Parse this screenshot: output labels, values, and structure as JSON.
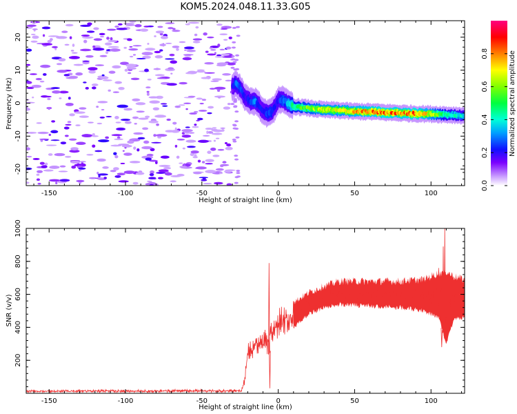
{
  "title": "KOM5.2024.048.11.33.G05",
  "chart_data": [
    {
      "type": "heatmap",
      "xlabel": "Height of straight line (km)",
      "ylabel": "Frequency (Hz)",
      "xlim": [
        -165,
        122
      ],
      "ylim": [
        -25,
        25
      ],
      "xticks": [
        -150,
        -100,
        -50,
        0,
        50,
        100
      ],
      "yticks": [
        -20,
        -10,
        0,
        10,
        20
      ],
      "colorbar": {
        "label": "Normalized spectral amplitude",
        "ticks": [
          "0.0",
          "0.2",
          "0.4",
          "0.6",
          "0.8"
        ],
        "range": [
          0,
          1
        ],
        "colormap": "rainbow (white/lavender → violet → blue → cyan → green → yellow → red → magenta)"
      },
      "noise_region_x": [
        -165,
        -30
      ],
      "noise_amplitude": [
        0.05,
        0.2
      ],
      "ridge": {
        "x": [
          -30,
          -28,
          -25,
          -22,
          -18,
          -15,
          -12,
          -10,
          -8,
          -6,
          -4,
          -2,
          0,
          3,
          6,
          10,
          20,
          30,
          40,
          50,
          60,
          70,
          80,
          90,
          100,
          110,
          120
        ],
        "freq": [
          5,
          6,
          4.5,
          2,
          0.5,
          0.5,
          -1,
          -2.5,
          -3,
          -3,
          -2.5,
          -1,
          1,
          1,
          0,
          -1,
          -1.5,
          -2,
          -2.2,
          -2.5,
          -2.6,
          -2.8,
          -3,
          -3.2,
          -3.3,
          -3.5,
          -3.7
        ],
        "amplitude": [
          0.2,
          0.32,
          0.25,
          0.22,
          0.25,
          0.3,
          0.22,
          0.2,
          0.25,
          0.3,
          0.25,
          0.2,
          0.22,
          0.3,
          0.35,
          0.5,
          0.6,
          0.7,
          0.7,
          0.75,
          0.8,
          0.85,
          0.8,
          0.85,
          0.7,
          0.45,
          0.4
        ]
      }
    },
    {
      "type": "line",
      "xlabel": "Height of straight line (km)",
      "ylabel": "SNR (v/v)",
      "xlim": [
        -165,
        122
      ],
      "ylim": [
        0,
        1000
      ],
      "xticks": [
        -150,
        -100,
        -50,
        0,
        50,
        100
      ],
      "yticks": [
        200,
        400,
        600,
        800,
        1000
      ],
      "color": "#ee3030",
      "grid": false,
      "envelope": {
        "x": [
          -165,
          -24,
          -22,
          -20,
          -15,
          -10,
          -7,
          -5,
          0,
          10,
          20,
          30,
          40,
          60,
          80,
          95,
          100,
          105,
          110,
          115,
          122
        ],
        "low": [
          5,
          5,
          40,
          180,
          230,
          240,
          210,
          260,
          320,
          400,
          480,
          520,
          540,
          530,
          520,
          500,
          480,
          460,
          300,
          450,
          460
        ],
        "high": [
          20,
          25,
          100,
          300,
          350,
          380,
          420,
          430,
          520,
          560,
          620,
          660,
          690,
          690,
          690,
          700,
          720,
          740,
          750,
          720,
          700
        ]
      },
      "spikes": [
        {
          "x": -6,
          "y": 790
        },
        {
          "x": -5.5,
          "y": 30
        },
        {
          "x": 105,
          "y": 760
        },
        {
          "x": 107,
          "y": 280
        },
        {
          "x": 108,
          "y": 890
        },
        {
          "x": 109,
          "y": 1000
        }
      ]
    }
  ]
}
